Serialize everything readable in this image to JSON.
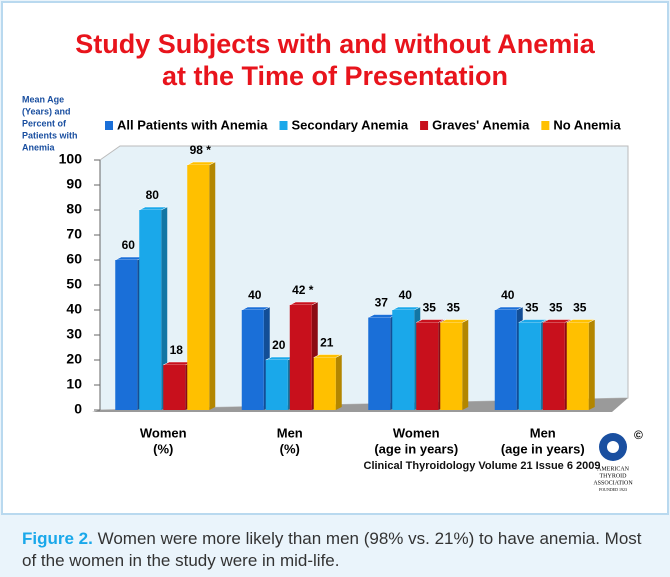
{
  "chart_data": {
    "type": "bar",
    "title": [
      "Study Subjects with and without Anemia",
      "at the Time of Presentation"
    ],
    "y_label": [
      "Mean Age",
      "(Years) and",
      "Percent of",
      "Patients with",
      "Anemia"
    ],
    "categories": [
      [
        "Women",
        "(%)"
      ],
      [
        "Men",
        "(%)"
      ],
      [
        "Women",
        "(age in years)"
      ],
      [
        "Men",
        "(age in years)"
      ]
    ],
    "series": [
      {
        "name": "All Patients with Anemia",
        "color": "#1a6fd8",
        "values": [
          60,
          40,
          37,
          40
        ]
      },
      {
        "name": "Secondary Anemia",
        "color": "#1aa8ea",
        "values": [
          80,
          20,
          40,
          35
        ]
      },
      {
        "name": "Graves' Anemia",
        "color": "#c8101c",
        "values": [
          18,
          42,
          35,
          35
        ],
        "value_labels": [
          "18",
          "42 *",
          "35",
          "35"
        ]
      },
      {
        "name": "No Anemia",
        "color": "#ffc000",
        "values": [
          98,
          21,
          35,
          35
        ],
        "value_labels": [
          "98 *",
          "21",
          "35",
          "35"
        ]
      }
    ],
    "ylim": [
      0,
      100
    ],
    "yticks": [
      0,
      10,
      20,
      30,
      40,
      50,
      60,
      70,
      80,
      90,
      100
    ],
    "grid": false,
    "legend": "top",
    "source": "Clinical Thyroidology Volume 21 Issue 6 2009",
    "logo": {
      "copyright": "©",
      "lines": [
        "AMERICAN",
        "THYROID",
        "ASSOCIATION"
      ],
      "founded": "FOUNDED 1923"
    }
  },
  "caption": {
    "label": "Figure 2.",
    "text": "Women were more likely than men (98% vs. 21%) to have anemia. Most of the women in the study were in mid-life."
  }
}
